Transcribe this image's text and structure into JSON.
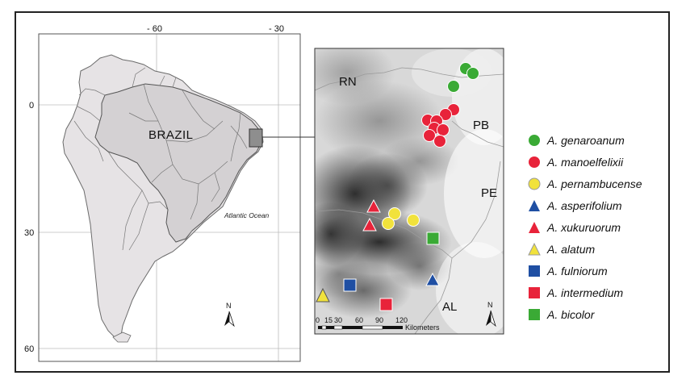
{
  "overview_map": {
    "top_ticks": [
      "- 60",
      "- 30"
    ],
    "left_ticks": [
      "0",
      "30",
      "60"
    ],
    "country_label": "BRAZIL",
    "ocean_label": "Atlantic Ocean",
    "north_label": "N"
  },
  "detail_map": {
    "state_labels": [
      "RN",
      "PB",
      "PE",
      "AL"
    ],
    "north_label": "N",
    "scale_ticks": [
      "0",
      "15",
      "30",
      "60",
      "90",
      "120"
    ],
    "scale_unit": "Kilometers"
  },
  "legend": {
    "items": [
      {
        "label": "A. genaroanum",
        "shape": "circle",
        "color": "#3aaa35"
      },
      {
        "label": "A. manoelfelixii",
        "shape": "circle",
        "color": "#e8233a"
      },
      {
        "label": "A. pernambucense",
        "shape": "circle",
        "color": "#f1e23c"
      },
      {
        "label": "A. asperifolium",
        "shape": "triangle",
        "color": "#1f4fa3"
      },
      {
        "label": "A. xukuruorum",
        "shape": "triangle",
        "color": "#e8233a"
      },
      {
        "label": "A. alatum",
        "shape": "triangle",
        "color": "#f1e23c"
      },
      {
        "label": "A. fulniorum",
        "shape": "square",
        "color": "#1f4fa3"
      },
      {
        "label": "A. intermedium",
        "shape": "square",
        "color": "#e8233a"
      },
      {
        "label": "A. bicolor",
        "shape": "square",
        "color": "#3aaa35"
      }
    ]
  }
}
